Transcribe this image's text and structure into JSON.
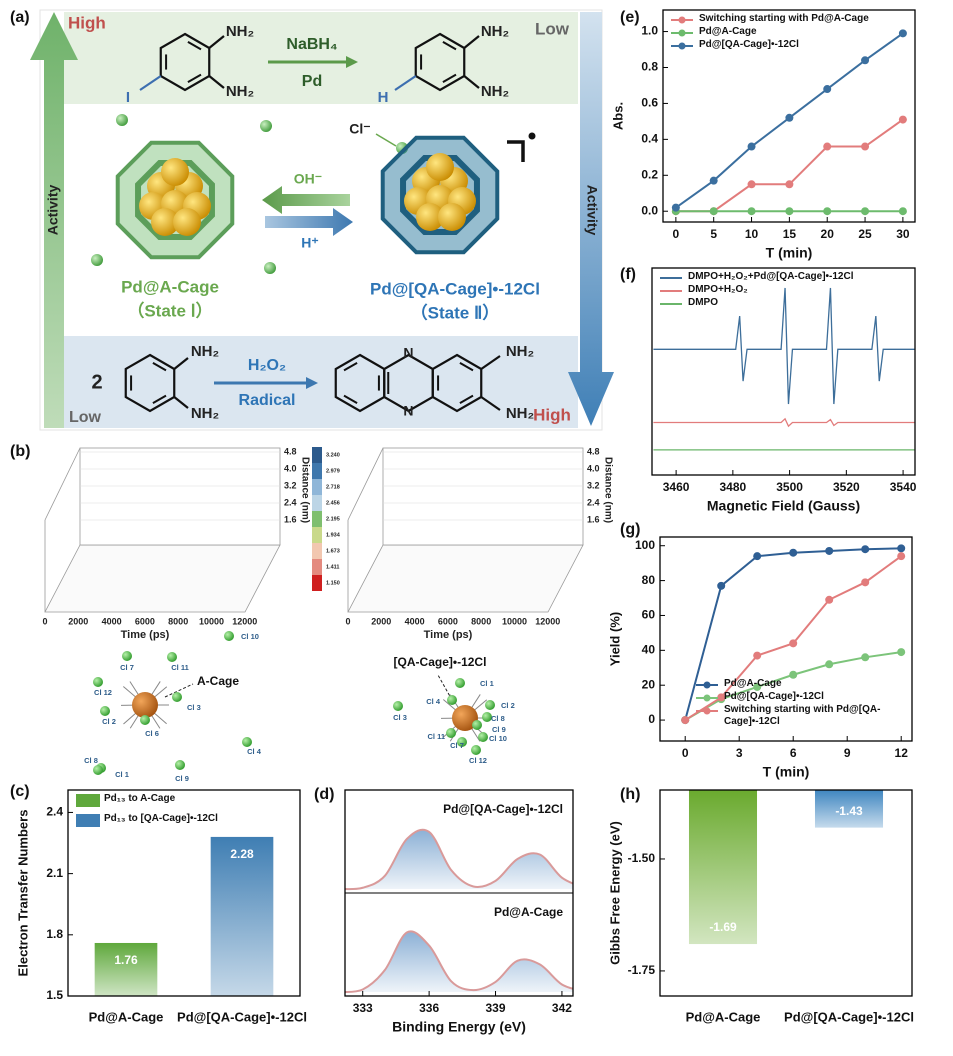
{
  "panel_labels": [
    "(a)",
    "(b)",
    "(c)",
    "(d)",
    "(e)",
    "(f)",
    "(g)",
    "(h)"
  ],
  "scheme": {
    "high_top": "High",
    "low_top": "Low",
    "activity": "Activity",
    "top_reaction": {
      "reagent": "NaBH₄",
      "catalyst": "Pd",
      "leaving": "I",
      "product_atom": "H",
      "amine": "NH₂"
    },
    "left_cage": {
      "name": "Pd@A-Cage",
      "state": "（State Ⅰ）"
    },
    "right_cage": {
      "name": "Pd@[QA-Cage]•-12Cl",
      "state": "（State Ⅱ）"
    },
    "base": "OH⁻",
    "acid": "H⁺",
    "chloride": "Cl⁻",
    "bottom_reaction": {
      "coefficient": "2",
      "oxidant": "H₂O₂",
      "mode": "Radical",
      "amine": "NH₂",
      "ring_atom": "N"
    },
    "low_bottom": "Low",
    "high_bottom": "High"
  },
  "md": {
    "plots": [
      {
        "x_label": "Time (ps)",
        "z_label": "Distance (nm)",
        "x_ticks": [
          "0",
          "2000",
          "4000",
          "6000",
          "8000",
          "10000",
          "12000"
        ],
        "z_ticks": [
          "1.6",
          "2.4",
          "3.2",
          "4.0",
          "4.8"
        ]
      },
      {
        "x_label": "Time (ps)",
        "z_label": "Distance (nm)",
        "x_ticks": [
          "0",
          "2000",
          "4000",
          "6000",
          "8000",
          "10000",
          "12000"
        ],
        "z_ticks": [
          "1.6",
          "2.4",
          "3.2",
          "4.0",
          "4.8"
        ]
      }
    ],
    "colorbar": [
      "3.240",
      "2.979",
      "2.718",
      "2.456",
      "2.195",
      "1.934",
      "1.673",
      "1.411",
      "1.150"
    ],
    "clusters": [
      {
        "label": "A-Cage",
        "atoms": [
          "Cl 10",
          "Cl 7",
          "Cl 11",
          "Cl 12",
          "Cl 2",
          "Cl 6",
          "Cl 3",
          "Cl 4",
          "Cl 8",
          "Cl 1",
          "Cl 9"
        ]
      },
      {
        "label": "[QA-Cage]•-12Cl",
        "atoms": [
          "Cl 1",
          "Cl 2",
          "Cl 4",
          "Cl 8",
          "Cl 3",
          "Cl 9",
          "Cl 11",
          "Cl 7",
          "Cl 10",
          "Cl 12"
        ]
      }
    ]
  },
  "chart_data": [
    {
      "type": "bar",
      "y_label": "Electron Transfer Numbers",
      "categories": [
        "Pd@A-Cage",
        "Pd@[QA-Cage]•-12Cl"
      ],
      "series": [
        {
          "name": "Pd₁₃ to A-Cage",
          "color": "#5fa83c",
          "values": [
            1.76,
            null
          ]
        },
        {
          "name": "Pd₁₃ to [QA-Cage]•-12Cl",
          "color": "#3f7eb3",
          "values": [
            null,
            2.28
          ]
        }
      ],
      "ylim": [
        1.5,
        2.51
      ],
      "yticks": [
        1.5,
        1.8,
        2.1,
        2.4
      ],
      "legend": "upper left"
    },
    {
      "type": "area",
      "x_label": "Binding Energy (eV)",
      "x": [
        332,
        333,
        334,
        335,
        336,
        337,
        338,
        339,
        340,
        341,
        342,
        343
      ],
      "series": [
        {
          "name": "Pd@[QA-Cage]•-12Cl",
          "color": "#5b8fc4",
          "values": [
            0,
            0.02,
            0.21,
            0.8,
            0.91,
            0.3,
            0.04,
            0.13,
            0.48,
            0.55,
            0.18,
            0.02
          ]
        },
        {
          "name": "Pd@A-Cage",
          "color": "#5b8fc4",
          "values": [
            0,
            0.04,
            0.35,
            0.95,
            0.74,
            0.17,
            0.03,
            0.16,
            0.5,
            0.44,
            0.12,
            0.01
          ]
        }
      ],
      "xlim": [
        332.2,
        342.5
      ],
      "xticks": [
        333,
        336,
        339,
        342
      ],
      "ylim": [
        0,
        1.1
      ]
    },
    {
      "type": "line",
      "x_label": "T (min)",
      "y_label": "Abs.",
      "x": [
        0,
        5,
        10,
        15,
        20,
        25,
        30
      ],
      "series": [
        {
          "name": "Switching starting with Pd@A-Cage",
          "color": "#e27c7c",
          "values": [
            0,
            0,
            0.15,
            0.15,
            0.36,
            0.36,
            0.51
          ]
        },
        {
          "name": "Pd@A-Cage",
          "color": "#6dbb6d",
          "values": [
            0,
            0,
            0,
            0,
            0,
            0,
            0
          ]
        },
        {
          "name": "Pd@[QA-Cage]•-12Cl",
          "color": "#3b6f9f",
          "values": [
            0.02,
            0.17,
            0.36,
            0.52,
            0.68,
            0.84,
            0.99
          ]
        }
      ],
      "xlim": [
        -1.7,
        31.6
      ],
      "xticks": [
        0,
        5,
        10,
        15,
        20,
        25,
        30
      ],
      "ylim": [
        -0.06,
        1.12
      ],
      "yticks": [
        {
          "value": 0,
          "label": "0.0"
        },
        0.2,
        0.4,
        0.6,
        0.8,
        {
          "value": 1,
          "label": "1.0"
        }
      ],
      "legend": "upper left"
    },
    {
      "type": "line",
      "markers": false,
      "x_label": "Magnetic Field (Gauss)",
      "x": [
        3452,
        3481,
        3482.4,
        3483.6,
        3485,
        3497,
        3498.4,
        3499.6,
        3501,
        3513,
        3514.4,
        3515.6,
        3517,
        3529,
        3530.4,
        3531.6,
        3533,
        3544
      ],
      "series": [
        {
          "name": "DMPO+H₂O₂+Pd@[QA-Cage]•-12Cl",
          "color": "#3d6e9a",
          "values": [
            1.7,
            1.7,
            2.15,
            1.27,
            1.7,
            1.7,
            2.53,
            0.96,
            1.7,
            1.7,
            2.53,
            0.96,
            1.7,
            1.7,
            2.15,
            1.27,
            1.7,
            1.7
          ]
        },
        {
          "name": "DMPO+H₂O₂",
          "color": "#e27c7c",
          "values": [
            0.71,
            0.71,
            0.71,
            0.71,
            0.71,
            0.71,
            0.76,
            0.66,
            0.71,
            0.71,
            0.75,
            0.67,
            0.71,
            0.71,
            0.71,
            0.71,
            0.71,
            0.71
          ]
        },
        {
          "name": "DMPO",
          "color": "#6ab56a",
          "values": [
            0.34,
            0.34,
            0.34,
            0.34,
            0.34,
            0.34,
            0.34,
            0.34,
            0.34,
            0.34,
            0.34,
            0.34,
            0.34,
            0.34,
            0.34,
            0.34,
            0.34,
            0.34
          ]
        }
      ],
      "xlim": [
        3451.5,
        3544.2
      ],
      "xticks": [
        3460,
        3480,
        3500,
        3520,
        3540
      ],
      "ylim": [
        0,
        2.8
      ],
      "legend": "upper left"
    },
    {
      "type": "line",
      "x_label": "T (min)",
      "y_label": "Yield (%)",
      "x": [
        0,
        2,
        4,
        6,
        8,
        10,
        12
      ],
      "series": [
        {
          "name": "Pd@A-Cage",
          "color": "#2f5f94",
          "values": [
            0,
            77,
            94,
            96,
            97,
            98,
            98.5
          ]
        },
        {
          "name": "Pd@[QA-Cage]•-12Cl",
          "color": "#7cc47a",
          "values": [
            0,
            12,
            19,
            26,
            32,
            36,
            39
          ]
        },
        {
          "name": "Switching starting with Pd@[QA-Cage]•-12Cl",
          "color": "#e27c7c",
          "values": [
            0,
            13,
            37,
            44,
            69,
            79,
            94
          ]
        }
      ],
      "xlim": [
        -1.4,
        12.6
      ],
      "xticks": [
        0,
        3,
        6,
        9,
        12
      ],
      "ylim": [
        -12,
        105
      ],
      "yticks": [
        0,
        20,
        40,
        60,
        80,
        100
      ],
      "legend": "lower right"
    },
    {
      "type": "bar",
      "y_label": "Gibbs Free Energy (eV)",
      "categories": [
        "Pd@A-Cage",
        "Pd@[QA-Cage]•-12Cl"
      ],
      "values": [
        -1.69,
        -1.43
      ],
      "colors": [
        "#6aaa2e",
        "#3f86c0"
      ],
      "ylim": [
        -1.806,
        -1.346
      ],
      "yticks": [
        {
          "value": -1.5,
          "label": "-1.50"
        },
        -1.75
      ]
    }
  ]
}
